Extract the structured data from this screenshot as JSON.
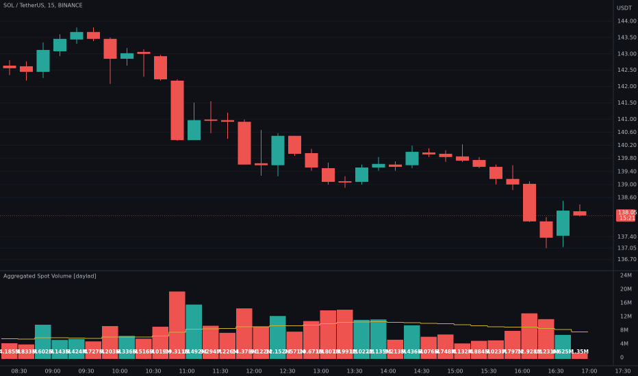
{
  "chart_data": [
    {
      "type": "candlestick",
      "title": "SOL / TetherUS, 15, BINANCE",
      "unit": "USDT",
      "categories": [
        "08:30",
        null,
        "09:00",
        null,
        "09:30",
        null,
        "10:00",
        null,
        "10:30",
        null,
        "11:00",
        null,
        "11:30",
        null,
        "12:00",
        null,
        "12:30",
        null,
        "13:00",
        null,
        "13:30",
        null,
        "14:00",
        null,
        "14:30",
        null,
        "15:00",
        null,
        "15:30",
        null,
        "16:00",
        null,
        "16:30",
        null,
        "17:00",
        null,
        "17:30"
      ],
      "open": [
        142.64,
        142.62,
        142.45,
        143.08,
        143.44,
        143.67,
        143.46,
        142.85,
        143.06,
        142.93,
        142.18,
        140.36,
        140.99,
        140.97,
        140.92,
        139.65,
        139.59,
        140.49,
        139.96,
        139.5,
        139.1,
        139.08,
        139.52,
        139.61,
        139.59,
        139.98,
        139.94,
        139.86,
        139.75,
        139.54,
        139.17,
        139.02,
        137.87,
        137.43,
        138.18,
        null,
        null
      ],
      "high": [
        142.81,
        142.77,
        143.35,
        143.6,
        143.81,
        143.81,
        143.5,
        143.18,
        143.14,
        142.97,
        142.22,
        141.51,
        141.55,
        141.2,
        140.99,
        140.67,
        140.57,
        140.49,
        140.09,
        139.67,
        139.25,
        139.61,
        139.84,
        139.71,
        140.19,
        140.11,
        140.05,
        140.23,
        139.84,
        139.61,
        139.59,
        139.1,
        138.0,
        138.5,
        138.39,
        null,
        null
      ],
      "low": [
        142.35,
        142.18,
        142.26,
        142.93,
        143.31,
        143.39,
        142.08,
        142.64,
        142.3,
        142.18,
        140.34,
        140.36,
        140.57,
        140.4,
        139.61,
        139.27,
        139.25,
        139.88,
        139.42,
        139.0,
        138.9,
        139.0,
        139.42,
        139.42,
        139.5,
        139.84,
        139.69,
        139.69,
        139.5,
        139.0,
        138.83,
        137.85,
        137.05,
        137.08,
        138.02,
        null,
        null
      ],
      "close": [
        142.56,
        142.45,
        143.12,
        143.46,
        143.67,
        143.46,
        142.85,
        143.02,
        143.0,
        142.22,
        140.36,
        140.97,
        140.95,
        140.92,
        139.61,
        139.59,
        140.49,
        139.94,
        139.52,
        139.08,
        139.06,
        139.52,
        139.63,
        139.54,
        140.0,
        139.92,
        139.84,
        139.73,
        139.54,
        139.17,
        139.0,
        137.87,
        137.37,
        138.2,
        138.05,
        null,
        null
      ],
      "up_color": "#26a69a",
      "down_color": "#ef5350",
      "ylim": [
        136.38,
        144.65
      ],
      "yticks": [
        {
          "value": 144,
          "label": "144.00"
        },
        {
          "value": 143.5,
          "label": "143.50"
        },
        {
          "value": 143,
          "label": "143.00"
        },
        {
          "value": 142.5,
          "label": "142.50"
        },
        {
          "value": 142,
          "label": "142.00"
        },
        {
          "value": 141.5,
          "label": "141.50"
        },
        {
          "value": 141,
          "label": "141.00"
        },
        {
          "value": 140.6,
          "label": "140.60"
        },
        {
          "value": 140.2,
          "label": "140.20"
        },
        {
          "value": 139.8,
          "label": "139.80"
        },
        {
          "value": 139.4,
          "label": "139.40"
        },
        {
          "value": 139,
          "label": "139.00"
        },
        {
          "value": 138.6,
          "label": "138.60"
        },
        {
          "value": 137.4,
          "label": "137.40"
        },
        {
          "value": 137.05,
          "label": "137.05"
        },
        {
          "value": 136.7,
          "label": "136.70"
        }
      ],
      "last_price": {
        "value": 138.05,
        "label": "138.05"
      },
      "countdown": "15:21",
      "grid": true
    },
    {
      "type": "bar",
      "title": "Aggregated Spot Volume [daylad]",
      "values": [
        4.185,
        3.833,
        9.602,
        5.143,
        5.424,
        4.727,
        9.203,
        6.336,
        5.516,
        9.019,
        19.311,
        15.492,
        9.294,
        7.226,
        14.378,
        9.122,
        12.152,
        7.571,
        10.671,
        13.807,
        13.991,
        11.022,
        11.135,
        5.213,
        9.436,
        6.076,
        6.748,
        4.132,
        4.884,
        5.023,
        7.797,
        12.928,
        11.231,
        6.625,
        1.35,
        null,
        null
      ],
      "value_labels": [
        "4.185M",
        "3.833M",
        "9.602M",
        "5.143M",
        "5.424M",
        "4.727M",
        "9.203M",
        "6.336M",
        "5.516M",
        "9.019M",
        "19.311M",
        "15.492M",
        "9.294M",
        "7.226M",
        "14.378M",
        "9.122M",
        "12.152M",
        "7.571M",
        "10.671M",
        "13.807M",
        "13.991M",
        "11.022M",
        "11.135M",
        "5.213M",
        "9.436M",
        "6.076M",
        "6.748M",
        "4.132M",
        "4.884M",
        "5.023M",
        "7.797M",
        "12.928M",
        "11.231M",
        "6.625M",
        "1.35M",
        null,
        null
      ],
      "ma_values": [
        5.5,
        5.4,
        5.8,
        5.8,
        5.7,
        5.6,
        6.0,
        6.0,
        6.0,
        6.3,
        7.4,
        8.3,
        8.4,
        8.5,
        9.0,
        9.0,
        9.3,
        9.3,
        9.5,
        9.9,
        10.3,
        10.4,
        10.5,
        10.3,
        10.2,
        10.0,
        9.9,
        9.6,
        9.3,
        9.0,
        8.9,
        8.9,
        8.5,
        8.2,
        7.5,
        null,
        null
      ],
      "ma_color": "#c9b235",
      "ylim": [
        -2.4,
        25.2
      ],
      "yticks": [
        0,
        {
          "value": 4,
          "label": "4M"
        },
        {
          "value": 8,
          "label": "8M"
        },
        {
          "value": 12,
          "label": "12M"
        },
        {
          "value": 16,
          "label": "16M"
        },
        {
          "value": 20,
          "label": "20M"
        },
        {
          "value": 24,
          "label": "24M"
        }
      ]
    }
  ]
}
